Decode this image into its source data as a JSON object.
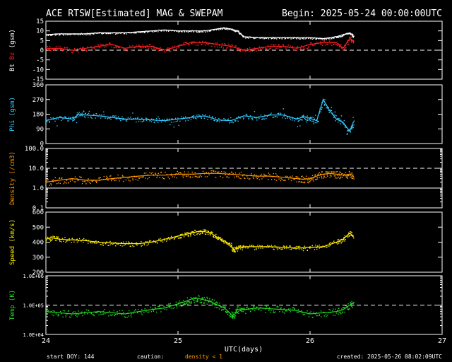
{
  "header": {
    "title": "ACE RTSW[Estimated] MAG & SWEPAM",
    "begin": "Begin: 2025-05-24 00:00:00UTC"
  },
  "footer": {
    "start_doy": "start DOY: 144",
    "caution": "caution:",
    "density_note": "density < 1",
    "created": "created: 2025-05-26 08:02:09UTC"
  },
  "colors": {
    "background": "#000000",
    "axis": "#ffffff",
    "bt": "#ffffff",
    "bz": "#ff2020",
    "phi": "#33ccff",
    "density": "#ff9900",
    "speed": "#ffee00",
    "temp": "#22dd22",
    "caution": "#ff9900"
  },
  "chart_data": [
    {
      "id": "mag",
      "type": "scatter",
      "ylabel_parts": [
        "Bt",
        " ",
        "Bz",
        " (gsm)"
      ],
      "ylim": [
        -15,
        15
      ],
      "yticks": [
        "15",
        "10",
        "5",
        "0",
        "-5",
        "-10",
        "-15"
      ],
      "ref_lines": [
        0
      ],
      "series": [
        {
          "name": "Bt",
          "x": [
            24.0,
            24.1,
            24.2,
            24.3,
            24.4,
            24.5,
            24.6,
            24.7,
            24.8,
            24.9,
            25.0,
            25.1,
            25.2,
            25.3,
            25.35,
            25.4,
            25.45,
            25.5,
            25.6,
            25.7,
            25.8,
            25.9,
            26.0,
            26.1,
            26.2,
            26.25,
            26.3,
            26.33
          ],
          "y": [
            8,
            8.5,
            8.5,
            8.5,
            9,
            9,
            9,
            9.5,
            10,
            10.5,
            10,
            10,
            10,
            11,
            11.5,
            11,
            10,
            7,
            6.5,
            6.5,
            6.5,
            6.5,
            6.5,
            6,
            7,
            8,
            9,
            7
          ]
        },
        {
          "name": "Bz",
          "x": [
            24.0,
            24.1,
            24.2,
            24.3,
            24.4,
            24.5,
            24.6,
            24.7,
            24.8,
            24.9,
            25.0,
            25.1,
            25.2,
            25.3,
            25.4,
            25.5,
            25.6,
            25.7,
            25.8,
            25.9,
            26.0,
            26.1,
            26.2,
            26.25,
            26.3,
            26.33
          ],
          "y": [
            1,
            1,
            0,
            1,
            2,
            3,
            1,
            2,
            2,
            0,
            2,
            4,
            4,
            3,
            2,
            0,
            1,
            2,
            2,
            1,
            3,
            4,
            4,
            1,
            6,
            5
          ]
        }
      ]
    },
    {
      "id": "phi",
      "type": "scatter",
      "ylabel": "Phi (gsm)",
      "ylim": [
        0,
        360
      ],
      "yticks": [
        "360",
        "270",
        "180",
        "90",
        "0"
      ],
      "series": [
        {
          "name": "Phi",
          "x": [
            24.0,
            24.1,
            24.2,
            24.25,
            24.3,
            24.4,
            24.5,
            24.6,
            24.7,
            24.8,
            24.9,
            25.0,
            25.1,
            25.2,
            25.3,
            25.4,
            25.5,
            25.6,
            25.7,
            25.8,
            25.9,
            25.95,
            26.0,
            26.05,
            26.1,
            26.15,
            26.2,
            26.25,
            26.3,
            26.33
          ],
          "y": [
            140,
            160,
            150,
            180,
            175,
            170,
            160,
            150,
            150,
            145,
            140,
            150,
            160,
            170,
            145,
            140,
            170,
            160,
            175,
            175,
            150,
            165,
            155,
            140,
            270,
            200,
            150,
            130,
            75,
            135
          ]
        }
      ]
    },
    {
      "id": "density",
      "type": "scatter",
      "ylabel": "Density (/cm3)",
      "yscale": "log",
      "ylim": [
        0.1,
        100
      ],
      "yticks": [
        "100.0",
        "10.0",
        "1.0",
        "0.1"
      ],
      "ref_lines": [
        10,
        1
      ],
      "series": [
        {
          "name": "Density",
          "x": [
            24.0,
            24.1,
            24.2,
            24.3,
            24.4,
            24.5,
            24.6,
            24.7,
            24.8,
            24.9,
            25.0,
            25.1,
            25.2,
            25.3,
            25.4,
            25.5,
            25.6,
            25.7,
            25.8,
            25.9,
            25.95,
            26.0,
            26.05,
            26.1,
            26.15,
            26.2,
            26.25,
            26.3,
            26.33
          ],
          "y": [
            2,
            2.5,
            3,
            2.5,
            2.5,
            3,
            3.5,
            4,
            4.5,
            4.5,
            5,
            5,
            5.5,
            5.5,
            5,
            4.5,
            4,
            4,
            3.5,
            3,
            2.8,
            3,
            4,
            5,
            5.5,
            5,
            4.5,
            5,
            4.5
          ]
        }
      ]
    },
    {
      "id": "speed",
      "type": "scatter",
      "ylabel": "Speed (km/s)",
      "ylim": [
        200,
        600
      ],
      "yticks": [
        "600",
        "500",
        "400",
        "300",
        "200"
      ],
      "series": [
        {
          "name": "Speed",
          "x": [
            24.0,
            24.05,
            24.1,
            24.2,
            24.3,
            24.4,
            24.5,
            24.6,
            24.7,
            24.8,
            24.9,
            25.0,
            25.05,
            25.1,
            25.15,
            25.2,
            25.25,
            25.3,
            25.35,
            25.4,
            25.42,
            25.45,
            25.5,
            25.6,
            25.7,
            25.8,
            25.9,
            26.0,
            26.1,
            26.2,
            26.25,
            26.3,
            26.33
          ],
          "y": [
            420,
            430,
            420,
            415,
            410,
            400,
            395,
            390,
            390,
            400,
            420,
            440,
            450,
            460,
            470,
            470,
            460,
            430,
            410,
            380,
            350,
            360,
            370,
            370,
            370,
            365,
            360,
            365,
            370,
            400,
            420,
            460,
            440
          ]
        }
      ]
    },
    {
      "id": "temp",
      "type": "scatter",
      "ylabel": "Temp (K)",
      "yscale": "log",
      "ylim": [
        10000,
        1000000
      ],
      "yticks": [
        "1.0E+06",
        "1.0E+05",
        "1.0E+04"
      ],
      "ref_lines": [
        100000
      ],
      "series": [
        {
          "name": "Temp",
          "x": [
            24.0,
            24.1,
            24.2,
            24.3,
            24.4,
            24.5,
            24.6,
            24.7,
            24.8,
            24.9,
            25.0,
            25.05,
            25.1,
            25.15,
            25.2,
            25.25,
            25.3,
            25.35,
            25.4,
            25.42,
            25.45,
            25.5,
            25.6,
            25.7,
            25.8,
            25.9,
            26.0,
            26.1,
            26.2,
            26.25,
            26.3,
            26.33
          ],
          "y": [
            60000,
            55000,
            50000,
            55000,
            60000,
            55000,
            50000,
            60000,
            70000,
            80000,
            110000,
            130000,
            160000,
            170000,
            150000,
            130000,
            100000,
            80000,
            50000,
            40000,
            70000,
            70000,
            80000,
            75000,
            70000,
            65000,
            50000,
            55000,
            60000,
            70000,
            100000,
            120000
          ]
        }
      ]
    }
  ],
  "xaxis": {
    "xlabel": "UTC(days)",
    "xlim": [
      24,
      27
    ],
    "xticks": [
      {
        "v": 24,
        "label": "24"
      },
      {
        "v": 25,
        "label": "25"
      },
      {
        "v": 26,
        "label": "26"
      },
      {
        "v": 27,
        "label": "27"
      }
    ]
  }
}
